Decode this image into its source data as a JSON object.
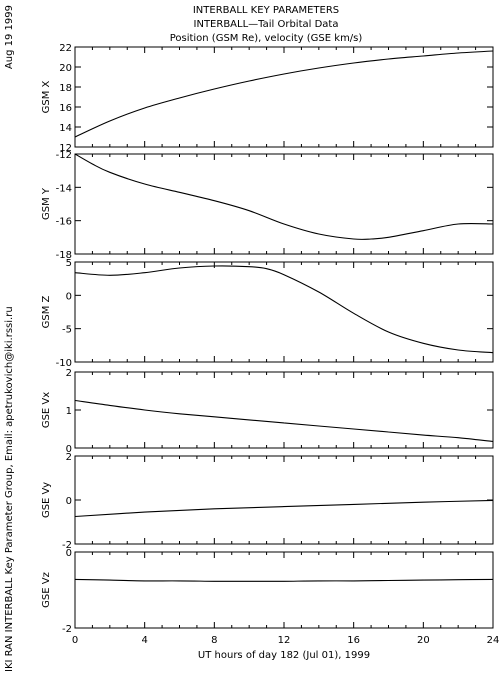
{
  "header": {
    "title_line1": "INTERBALL KEY PARAMETERS",
    "title_line2": "INTERBALL—Tail Orbital Data",
    "title_line3": "Position (GSM Re), velocity (GSE km/s)"
  },
  "side_labels": {
    "date": "Aug 19 1999",
    "credit": "IKI RAN INTERBALL Key Parameter Group, Email: apetrukovich@iki.rssi.ru"
  },
  "chart_data": {
    "type": "line",
    "xlabel": "UT hours of day 182 (Jul 01), 1999",
    "xlim": [
      0,
      24
    ],
    "xticks": [
      "0",
      "4",
      "8",
      "12",
      "16",
      "20",
      "24"
    ],
    "panels": [
      {
        "ylabel": "GSM X",
        "ylim": [
          12,
          22
        ],
        "yticks": [
          "12",
          "14",
          "16",
          "18",
          "20",
          "22"
        ],
        "x": [
          0,
          2,
          4,
          6,
          8,
          10,
          12,
          14,
          16,
          18,
          20,
          22,
          24
        ],
        "y": [
          13.0,
          14.6,
          15.9,
          16.9,
          17.8,
          18.6,
          19.3,
          19.9,
          20.4,
          20.8,
          21.1,
          21.4,
          21.6
        ]
      },
      {
        "ylabel": "GSM Y",
        "ylim": [
          -18,
          -12
        ],
        "yticks": [
          "-18",
          "-16",
          "-14",
          "-12"
        ],
        "x": [
          0,
          1,
          2,
          4,
          6,
          8,
          10,
          12,
          14,
          16,
          17,
          18,
          20,
          22,
          24
        ],
        "y": [
          -12.0,
          -12.6,
          -13.1,
          -13.8,
          -14.3,
          -14.8,
          -15.4,
          -16.2,
          -16.8,
          -17.1,
          -17.1,
          -17.0,
          -16.6,
          -16.2,
          -16.2
        ]
      },
      {
        "ylabel": "GSM Z",
        "ylim": [
          -10,
          5
        ],
        "yticks": [
          "-10",
          "-5",
          "0",
          "5"
        ],
        "x": [
          0,
          2,
          4,
          6,
          8,
          10,
          11,
          12,
          14,
          16,
          18,
          20,
          22,
          24
        ],
        "y": [
          3.4,
          3.0,
          3.4,
          4.1,
          4.4,
          4.3,
          4.0,
          3.1,
          0.5,
          -2.7,
          -5.5,
          -7.2,
          -8.2,
          -8.6
        ]
      },
      {
        "ylabel": "GSE Vx",
        "ylim": [
          0,
          2
        ],
        "yticks": [
          "0",
          "1",
          "2"
        ],
        "x": [
          0,
          2,
          4,
          6,
          8,
          10,
          12,
          14,
          16,
          18,
          20,
          22,
          24
        ],
        "y": [
          1.25,
          1.12,
          1.0,
          0.9,
          0.82,
          0.74,
          0.66,
          0.58,
          0.5,
          0.42,
          0.34,
          0.27,
          0.17
        ]
      },
      {
        "ylabel": "GSE Vy",
        "ylim": [
          -2,
          2
        ],
        "yticks": [
          "-2",
          "0",
          "2"
        ],
        "x": [
          0,
          4,
          8,
          12,
          16,
          20,
          24
        ],
        "y": [
          -0.75,
          -0.55,
          -0.4,
          -0.3,
          -0.2,
          -0.1,
          -0.02
        ]
      },
      {
        "ylabel": "GSE Vz",
        "ylim": [
          -2,
          0
        ],
        "yticks": [
          "-2",
          "0"
        ],
        "x": [
          0,
          2,
          4,
          6,
          8,
          10,
          12,
          14,
          16,
          18,
          20,
          22,
          24
        ],
        "y": [
          -0.72,
          -0.74,
          -0.76,
          -0.76,
          -0.77,
          -0.77,
          -0.77,
          -0.76,
          -0.76,
          -0.75,
          -0.74,
          -0.73,
          -0.72
        ]
      }
    ]
  }
}
